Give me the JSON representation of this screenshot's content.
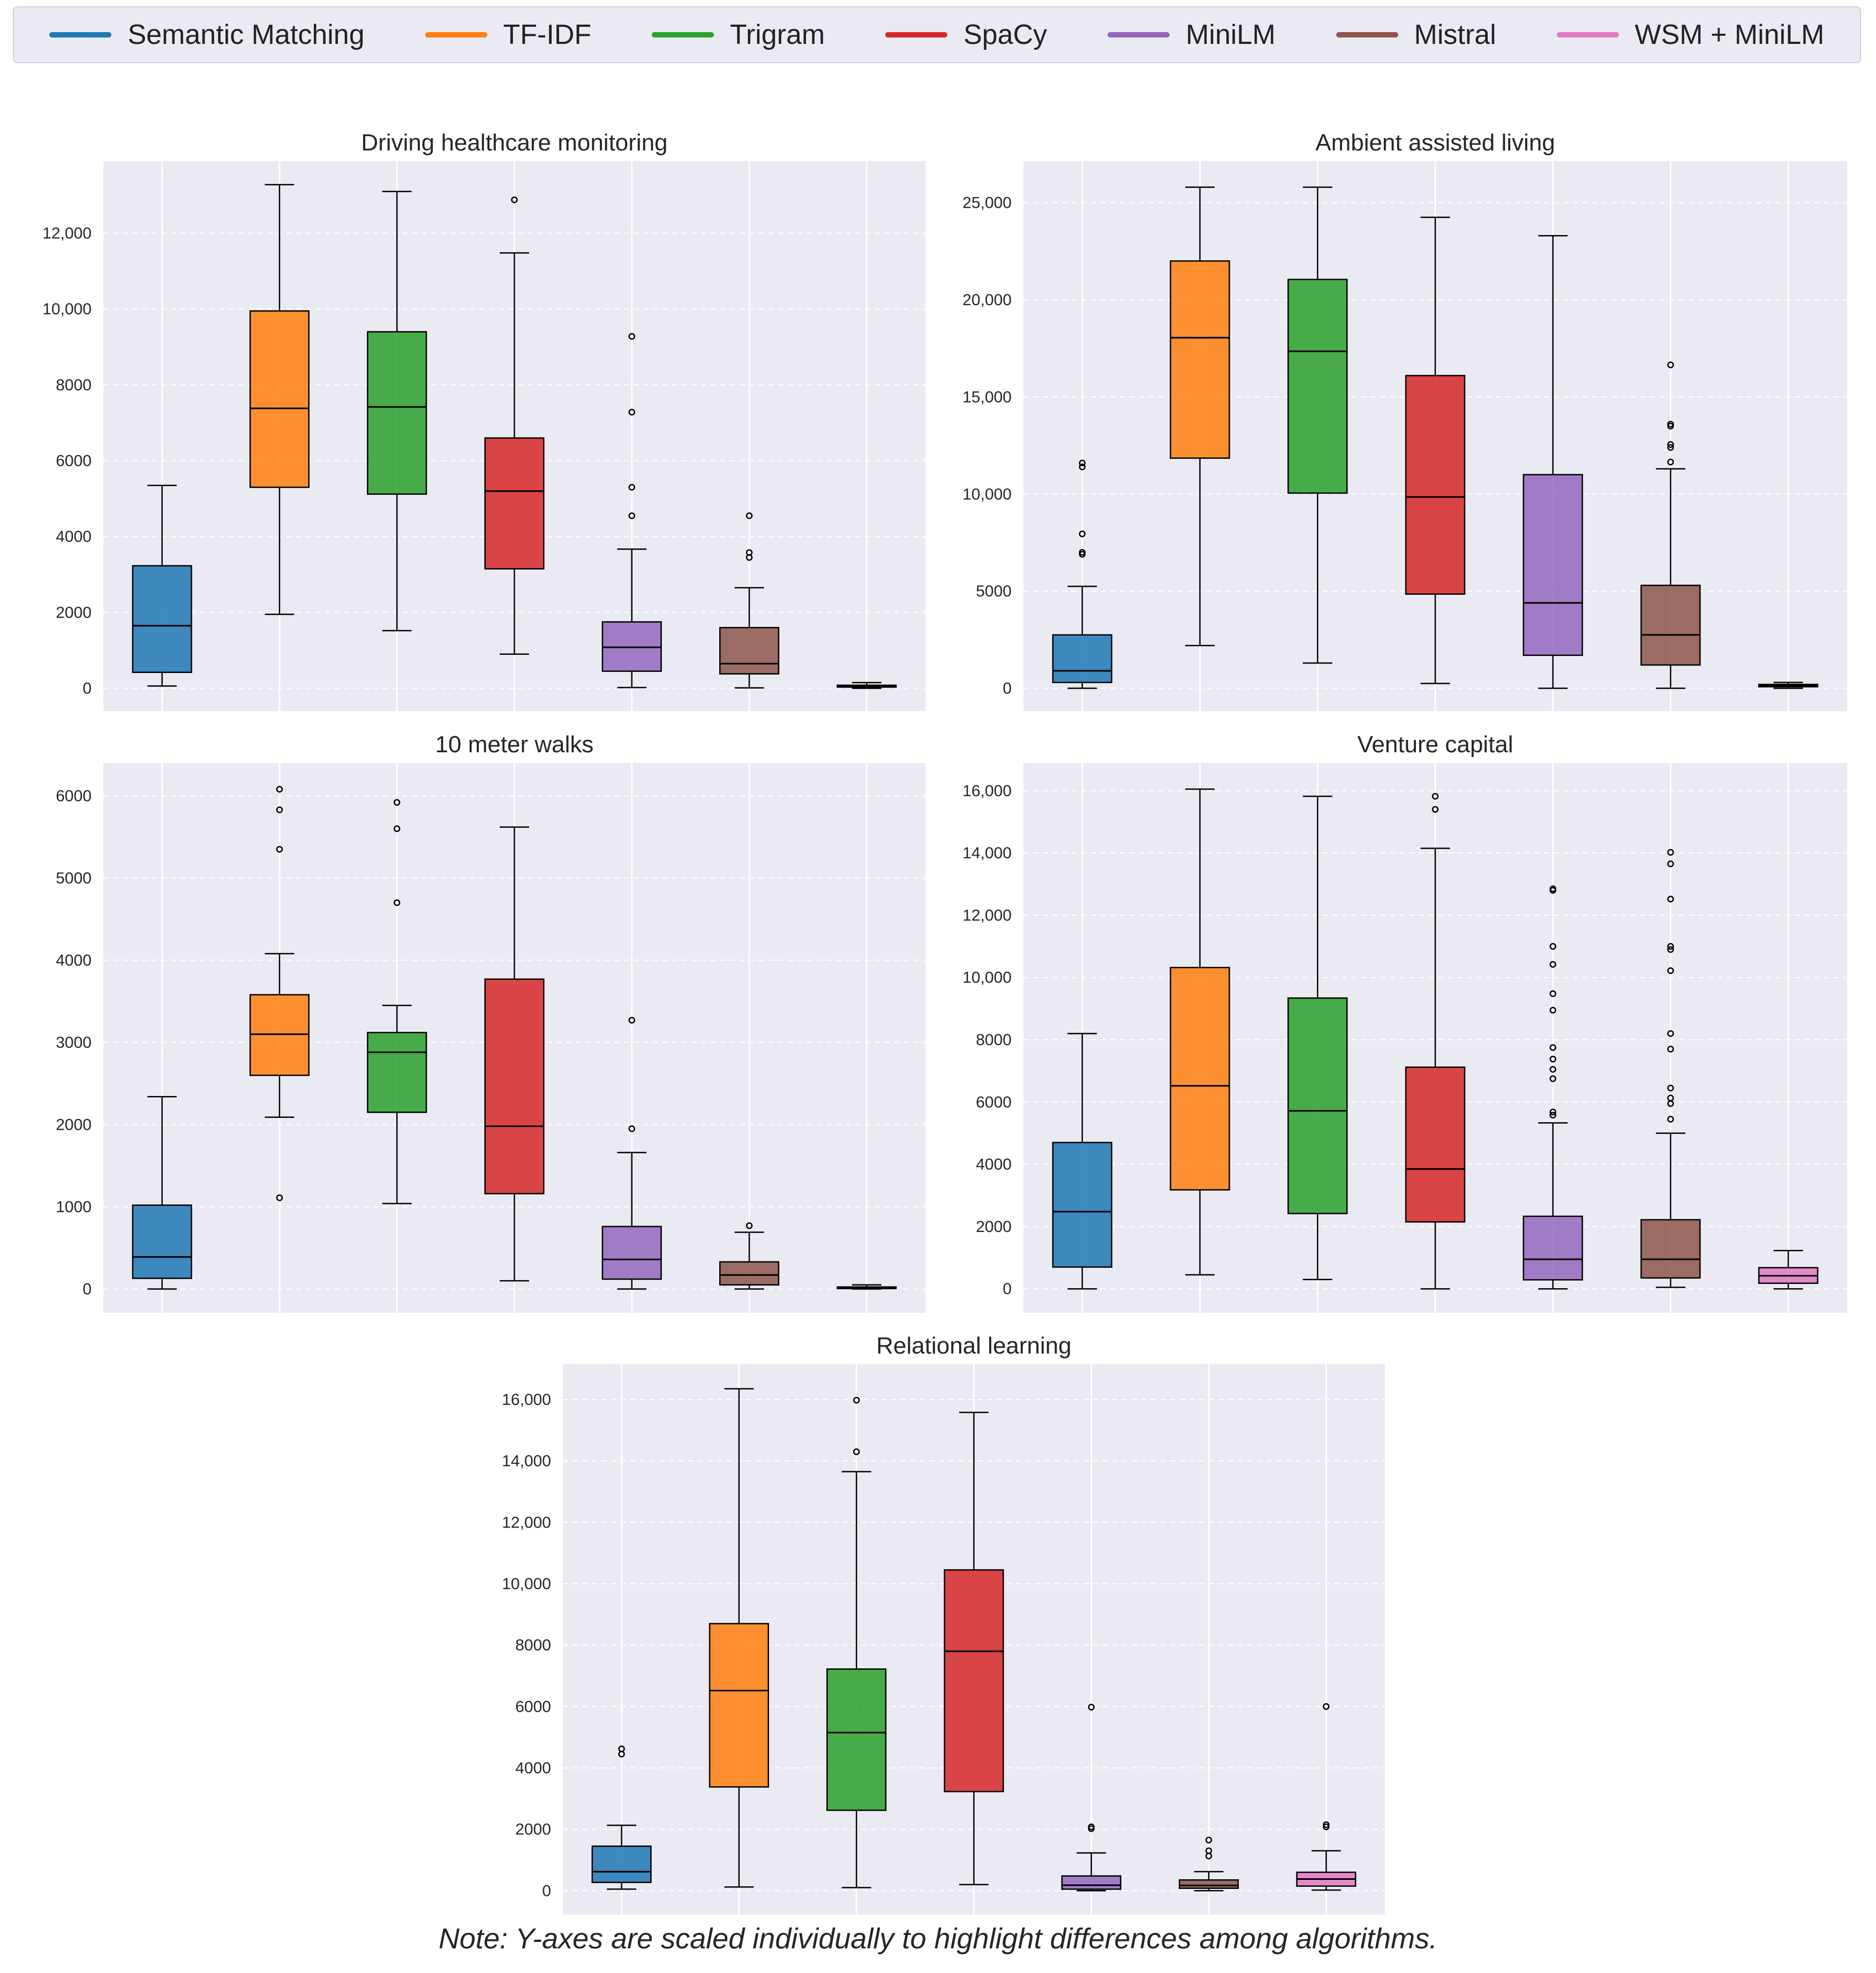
{
  "legend": [
    {
      "label": "Semantic Matching",
      "color": "#1f77b4"
    },
    {
      "label": "TF-IDF",
      "color": "#ff7f0e"
    },
    {
      "label": "Trigram",
      "color": "#2ca02c"
    },
    {
      "label": "SpaCy",
      "color": "#d62728"
    },
    {
      "label": "MiniLM",
      "color": "#9467bd"
    },
    {
      "label": "Mistral",
      "color": "#8c564b"
    },
    {
      "label": "WSM + MiniLM",
      "color": "#e377c2"
    }
  ],
  "note": "Note: Y-axes are scaled individually to highlight differences among algorithms.",
  "chart_data": [
    {
      "type": "box",
      "title": "Driving healthcare monitoring",
      "ylim": [
        -600,
        13900
      ],
      "yticks": [
        0,
        2000,
        4000,
        6000,
        8000,
        10000,
        12000
      ],
      "ytick_labels": [
        "0",
        "2000",
        "4000",
        "6000",
        "8000",
        "10,000",
        "12,000"
      ],
      "boxes": [
        {
          "name": "Semantic Matching",
          "low": 60,
          "q1": 420,
          "median": 1650,
          "q3": 3230,
          "high": 5350,
          "outliers": []
        },
        {
          "name": "TF-IDF",
          "low": 1950,
          "q1": 5300,
          "median": 7380,
          "q3": 9950,
          "high": 13280,
          "outliers": []
        },
        {
          "name": "Trigram",
          "low": 1520,
          "q1": 5120,
          "median": 7420,
          "q3": 9400,
          "high": 13100,
          "outliers": []
        },
        {
          "name": "SpaCy",
          "low": 900,
          "q1": 3150,
          "median": 5200,
          "q3": 6600,
          "high": 11480,
          "outliers": [
            12880
          ]
        },
        {
          "name": "MiniLM",
          "low": 20,
          "q1": 450,
          "median": 1080,
          "q3": 1750,
          "high": 3670,
          "outliers": [
            4550,
            5300,
            7280,
            9280
          ]
        },
        {
          "name": "Mistral",
          "low": 10,
          "q1": 380,
          "median": 650,
          "q3": 1600,
          "high": 2650,
          "outliers": [
            3450,
            3580,
            4550
          ]
        },
        {
          "name": "WSM + MiniLM",
          "low": 0,
          "q1": 30,
          "median": 60,
          "q3": 80,
          "high": 150,
          "outliers": []
        }
      ]
    },
    {
      "type": "box",
      "title": "Ambient assisted living",
      "ylim": [
        -1170,
        27140
      ],
      "yticks": [
        0,
        5000,
        10000,
        15000,
        20000,
        25000
      ],
      "ytick_labels": [
        "0",
        "5000",
        "10,000",
        "15,000",
        "20,000",
        "25,000"
      ],
      "boxes": [
        {
          "name": "Semantic Matching",
          "low": 0,
          "q1": 300,
          "median": 900,
          "q3": 2750,
          "high": 5250,
          "outliers": [
            6900,
            7000,
            7950,
            11400,
            11600
          ]
        },
        {
          "name": "TF-IDF",
          "low": 2200,
          "q1": 11850,
          "median": 18050,
          "q3": 22000,
          "high": 25800,
          "outliers": []
        },
        {
          "name": "Trigram",
          "low": 1300,
          "q1": 10050,
          "median": 17350,
          "q3": 21050,
          "high": 25800,
          "outliers": []
        },
        {
          "name": "SpaCy",
          "low": 250,
          "q1": 4850,
          "median": 9850,
          "q3": 16100,
          "high": 24250,
          "outliers": []
        },
        {
          "name": "MiniLM",
          "low": 0,
          "q1": 1700,
          "median": 4400,
          "q3": 11000,
          "high": 23300,
          "outliers": []
        },
        {
          "name": "Mistral",
          "low": 0,
          "q1": 1200,
          "median": 2750,
          "q3": 5300,
          "high": 11300,
          "outliers": [
            11650,
            12400,
            12550,
            13500,
            13600,
            16650
          ]
        },
        {
          "name": "WSM + MiniLM",
          "low": 0,
          "q1": 80,
          "median": 150,
          "q3": 200,
          "high": 300,
          "outliers": []
        }
      ]
    },
    {
      "type": "box",
      "title": "10 meter walks",
      "ylim": [
        -290,
        6400
      ],
      "yticks": [
        0,
        1000,
        2000,
        3000,
        4000,
        5000,
        6000
      ],
      "ytick_labels": [
        "0",
        "1000",
        "2000",
        "3000",
        "4000",
        "5000",
        "6000"
      ],
      "boxes": [
        {
          "name": "Semantic Matching",
          "low": 0,
          "q1": 130,
          "median": 390,
          "q3": 1020,
          "high": 2340,
          "outliers": []
        },
        {
          "name": "TF-IDF",
          "low": 2090,
          "q1": 2600,
          "median": 3100,
          "q3": 3580,
          "high": 4080,
          "outliers": [
            1110,
            5350,
            5830,
            6080
          ]
        },
        {
          "name": "Trigram",
          "low": 1040,
          "q1": 2150,
          "median": 2880,
          "q3": 3120,
          "high": 3450,
          "outliers": [
            4700,
            5600,
            5920
          ]
        },
        {
          "name": "SpaCy",
          "low": 100,
          "q1": 1160,
          "median": 1980,
          "q3": 3770,
          "high": 5620,
          "outliers": []
        },
        {
          "name": "MiniLM",
          "low": 0,
          "q1": 120,
          "median": 360,
          "q3": 760,
          "high": 1660,
          "outliers": [
            1950,
            3270
          ]
        },
        {
          "name": "Mistral",
          "low": 0,
          "q1": 50,
          "median": 170,
          "q3": 330,
          "high": 690,
          "outliers": [
            770
          ]
        },
        {
          "name": "WSM + MiniLM",
          "low": 0,
          "q1": 5,
          "median": 15,
          "q3": 25,
          "high": 50,
          "outliers": []
        }
      ]
    },
    {
      "type": "box",
      "title": "Venture capital",
      "ylim": [
        -770,
        16890
      ],
      "yticks": [
        0,
        2000,
        4000,
        6000,
        8000,
        10000,
        12000,
        14000,
        16000
      ],
      "ytick_labels": [
        "0",
        "2000",
        "4000",
        "6000",
        "8000",
        "10,000",
        "12,000",
        "14,000",
        "16,000"
      ],
      "boxes": [
        {
          "name": "Semantic Matching",
          "low": 0,
          "q1": 700,
          "median": 2480,
          "q3": 4700,
          "high": 8200,
          "outliers": []
        },
        {
          "name": "TF-IDF",
          "low": 450,
          "q1": 3180,
          "median": 6520,
          "q3": 10320,
          "high": 16050,
          "outliers": []
        },
        {
          "name": "Trigram",
          "low": 300,
          "q1": 2420,
          "median": 5720,
          "q3": 9340,
          "high": 15820,
          "outliers": []
        },
        {
          "name": "SpaCy",
          "low": 0,
          "q1": 2150,
          "median": 3850,
          "q3": 7120,
          "high": 14150,
          "outliers": [
            15400,
            15820
          ]
        },
        {
          "name": "MiniLM",
          "low": 0,
          "q1": 290,
          "median": 950,
          "q3": 2330,
          "high": 5330,
          "outliers": [
            5580,
            5680,
            6750,
            7050,
            7380,
            7750,
            8950,
            9480,
            10420,
            11000,
            12800,
            12850
          ]
        },
        {
          "name": "Mistral",
          "low": 50,
          "q1": 350,
          "median": 950,
          "q3": 2220,
          "high": 5000,
          "outliers": [
            5450,
            5950,
            6130,
            6450,
            7700,
            8200,
            10220,
            10900,
            11000,
            12520,
            13650,
            14020
          ]
        },
        {
          "name": "WSM + MiniLM",
          "low": 0,
          "q1": 180,
          "median": 420,
          "q3": 680,
          "high": 1230,
          "outliers": []
        }
      ]
    },
    {
      "type": "box",
      "title": "Relational learning",
      "ylim": [
        -780,
        17150
      ],
      "yticks": [
        0,
        2000,
        4000,
        6000,
        8000,
        10000,
        12000,
        14000,
        16000
      ],
      "ytick_labels": [
        "0",
        "2000",
        "4000",
        "6000",
        "8000",
        "10,000",
        "12,000",
        "14,000",
        "16,000"
      ],
      "boxes": [
        {
          "name": "Semantic Matching",
          "low": 50,
          "q1": 270,
          "median": 620,
          "q3": 1450,
          "high": 2130,
          "outliers": [
            4450,
            4620
          ]
        },
        {
          "name": "TF-IDF",
          "low": 120,
          "q1": 3380,
          "median": 6520,
          "q3": 8700,
          "high": 16350,
          "outliers": []
        },
        {
          "name": "Trigram",
          "low": 100,
          "q1": 2620,
          "median": 5150,
          "q3": 7220,
          "high": 13650,
          "outliers": [
            14300,
            15980
          ]
        },
        {
          "name": "SpaCy",
          "low": 200,
          "q1": 3230,
          "median": 7800,
          "q3": 10450,
          "high": 15580,
          "outliers": []
        },
        {
          "name": "MiniLM",
          "low": 0,
          "q1": 50,
          "median": 180,
          "q3": 480,
          "high": 1230,
          "outliers": [
            2020,
            2080,
            5980
          ]
        },
        {
          "name": "Mistral",
          "low": 0,
          "q1": 80,
          "median": 170,
          "q3": 350,
          "high": 620,
          "outliers": [
            1130,
            1300,
            1650
          ]
        },
        {
          "name": "WSM + MiniLM",
          "low": 20,
          "q1": 150,
          "median": 380,
          "q3": 600,
          "high": 1300,
          "outliers": [
            2080,
            2150,
            6000
          ]
        }
      ]
    }
  ]
}
